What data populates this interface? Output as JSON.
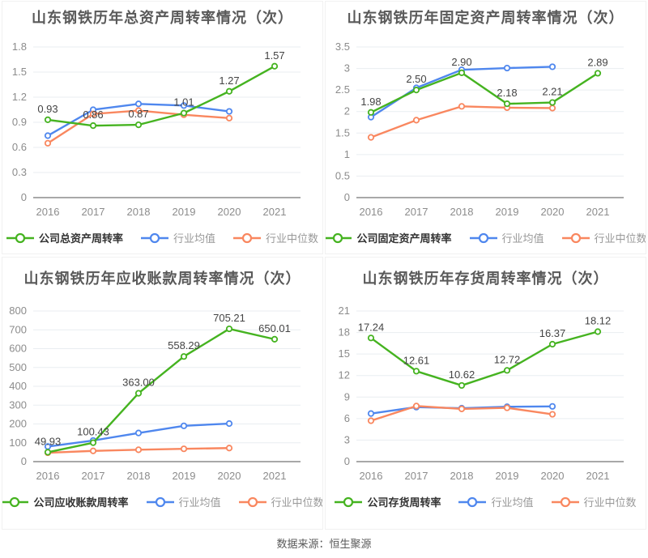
{
  "page": {
    "footer": "数据来源：恒生聚源"
  },
  "colors": {
    "company": "#45b320",
    "industry_mean": "#4f87ee",
    "industry_median": "#f9875f",
    "title_text": "#595959",
    "axis_text": "#8c8c8c",
    "value_text": "#444444",
    "grid_line": "#e9edf1",
    "axis_line": "#a8a8a8",
    "legend_text_primary": "#333333",
    "legend_text_secondary": "#999999"
  },
  "chart_data": [
    {
      "type": "line",
      "title": "山东钢铁历年总资产周转率情况（次）",
      "x": [
        "2016",
        "2017",
        "2018",
        "2019",
        "2020",
        "2021"
      ],
      "ylim": [
        0,
        1.8
      ],
      "yticks": [
        "0",
        "0.3",
        "0.6",
        "0.9",
        "1.2",
        "1.5",
        "1.8"
      ],
      "grid": true,
      "legend_position": "bottom",
      "series": [
        {
          "name": "公司总资产周转率",
          "color_key": "company",
          "values": [
            0.93,
            0.86,
            0.87,
            1.01,
            1.27,
            1.57
          ],
          "labels": [
            "0.93",
            "0.86",
            "0.87",
            "1.01",
            "1.27",
            "1.57"
          ]
        },
        {
          "name": "行业均值",
          "color_key": "industry_mean",
          "values": [
            0.74,
            1.05,
            1.12,
            1.1,
            1.03
          ]
        },
        {
          "name": "行业中位数",
          "color_key": "industry_median",
          "values": [
            0.65,
            1.0,
            1.04,
            0.99,
            0.95
          ]
        }
      ]
    },
    {
      "type": "line",
      "title": "山东钢铁历年固定资产周转率情况（次）",
      "x": [
        "2016",
        "2017",
        "2018",
        "2019",
        "2020",
        "2021"
      ],
      "ylim": [
        0,
        3.5
      ],
      "yticks": [
        "0",
        "0.5",
        "1",
        "1.5",
        "2",
        "2.5",
        "3",
        "3.5"
      ],
      "grid": true,
      "legend_position": "bottom",
      "series": [
        {
          "name": "公司固定资产周转率",
          "color_key": "company",
          "values": [
            1.98,
            2.5,
            2.9,
            2.18,
            2.21,
            2.89
          ],
          "labels": [
            "1.98",
            "2.50",
            "2.90",
            "2.18",
            "2.21",
            "2.89"
          ]
        },
        {
          "name": "行业均值",
          "color_key": "industry_mean",
          "values": [
            1.87,
            2.55,
            2.97,
            3.01,
            3.04
          ]
        },
        {
          "name": "行业中位数",
          "color_key": "industry_median",
          "values": [
            1.4,
            1.8,
            2.12,
            2.09,
            2.08
          ]
        }
      ]
    },
    {
      "type": "line",
      "title": "山东钢铁历年应收账款周转率情况（次）",
      "x": [
        "2016",
        "2017",
        "2018",
        "2019",
        "2020",
        "2021"
      ],
      "ylim": [
        0,
        800
      ],
      "yticks": [
        "0",
        "100",
        "200",
        "300",
        "400",
        "500",
        "600",
        "700",
        "800"
      ],
      "grid": true,
      "legend_position": "bottom",
      "series": [
        {
          "name": "公司应收账款周转率",
          "color_key": "company",
          "values": [
            49.93,
            100.43,
            363.0,
            558.29,
            705.21,
            650.01
          ],
          "labels": [
            "49.93",
            "100.43",
            "363.00",
            "558.29",
            "705.21",
            "650.01"
          ]
        },
        {
          "name": "行业均值",
          "color_key": "industry_mean",
          "values": [
            80,
            112,
            152,
            190,
            202
          ]
        },
        {
          "name": "行业中位数",
          "color_key": "industry_median",
          "values": [
            47,
            57,
            63,
            68,
            72
          ]
        }
      ]
    },
    {
      "type": "line",
      "title": "山东钢铁历年存货周转率情况（次）",
      "x": [
        "2016",
        "2017",
        "2018",
        "2019",
        "2020",
        "2021"
      ],
      "ylim": [
        0,
        21
      ],
      "yticks": [
        "0",
        "3",
        "6",
        "9",
        "12",
        "15",
        "18",
        "21"
      ],
      "grid": true,
      "legend_position": "bottom",
      "series": [
        {
          "name": "公司存货周转率",
          "color_key": "company",
          "values": [
            17.24,
            12.61,
            10.62,
            12.72,
            16.37,
            18.12
          ],
          "labels": [
            "17.24",
            "12.61",
            "10.62",
            "12.72",
            "16.37",
            "18.12"
          ]
        },
        {
          "name": "行业均值",
          "color_key": "industry_mean",
          "values": [
            6.7,
            7.6,
            7.45,
            7.65,
            7.7
          ]
        },
        {
          "name": "行业中位数",
          "color_key": "industry_median",
          "values": [
            5.7,
            7.75,
            7.35,
            7.5,
            6.6
          ]
        }
      ]
    }
  ]
}
